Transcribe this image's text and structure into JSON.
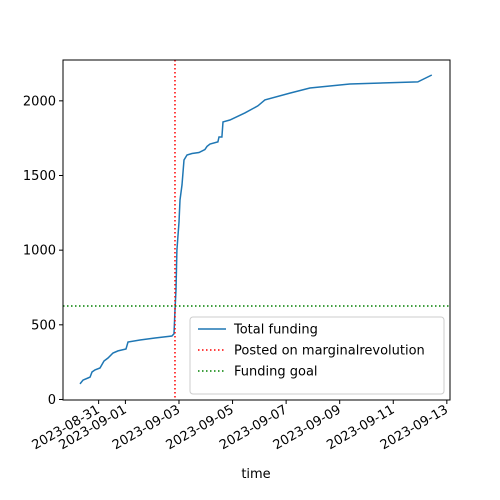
{
  "chart_data": {
    "type": "line",
    "x_label": "time",
    "x": [
      "2023-08-30T07:20",
      "2023-08-30T10:00",
      "2023-08-30T14:30",
      "2023-08-30T16:20",
      "2023-08-30T18:05",
      "2023-08-30T20:45",
      "2023-08-31T01:15",
      "2023-08-31T04:50",
      "2023-08-31T08:25",
      "2023-08-31T12:55",
      "2023-08-31T17:20",
      "2023-09-01T00:30",
      "2023-09-01T02:20",
      "2023-09-01T13:05",
      "2023-09-02T02:30",
      "2023-09-02T17:40",
      "2023-09-02T19:30",
      "2023-09-02T20:25",
      "2023-09-02T21:20",
      "2023-09-02T22:10",
      "2023-09-03T00:00",
      "2023-09-03T00:55",
      "2023-09-03T02:40",
      "2023-09-03T04:30",
      "2023-09-03T07:10",
      "2023-09-03T11:40",
      "2023-09-03T17:55",
      "2023-09-03T23:15",
      "2023-09-04T01:05",
      "2023-09-04T03:45",
      "2023-09-04T10:55",
      "2023-09-04T11:50",
      "2023-09-04T14:30",
      "2023-09-04T15:25",
      "2023-09-04T21:40",
      "2023-09-05T11:05",
      "2023-09-05T22:40",
      "2023-09-06T05:00",
      "2023-09-07T03:25",
      "2023-09-07T21:20",
      "2023-09-09T09:05",
      "2023-09-11T22:00",
      "2023-09-12T10:30"
    ],
    "series": [
      {
        "name": "Total funding",
        "color": "#1f77b4",
        "values": [
          104,
          130,
          144,
          150,
          184,
          198,
          211,
          258,
          278,
          311,
          325,
          338,
          385,
          398,
          412,
          425,
          440,
          600,
          733,
          1000,
          1188,
          1336,
          1437,
          1604,
          1637,
          1647,
          1654,
          1674,
          1695,
          1711,
          1725,
          1758,
          1758,
          1859,
          1872,
          1919,
          1966,
          2006,
          2052,
          2086,
          2113,
          2127,
          2173
        ]
      }
    ],
    "vlines": [
      {
        "name": "Posted on marginalrevolution",
        "color": "#ff0000",
        "x": "2023-09-02T20:25"
      }
    ],
    "hlines": [
      {
        "name": "Funding goal",
        "color": "#008000",
        "y": 626
      }
    ],
    "xlim": [
      "2023-08-29T16:05",
      "2023-09-13T02:50"
    ],
    "xticks": [
      "2023-08-31",
      "2023-09-01",
      "2023-09-03",
      "2023-09-05",
      "2023-09-07",
      "2023-09-09",
      "2023-09-11",
      "2023-09-13"
    ],
    "ylim": [
      -3.5,
      2273.5
    ],
    "yticks": [
      0,
      500,
      1000,
      1500,
      2000
    ],
    "legend": "lower right"
  }
}
